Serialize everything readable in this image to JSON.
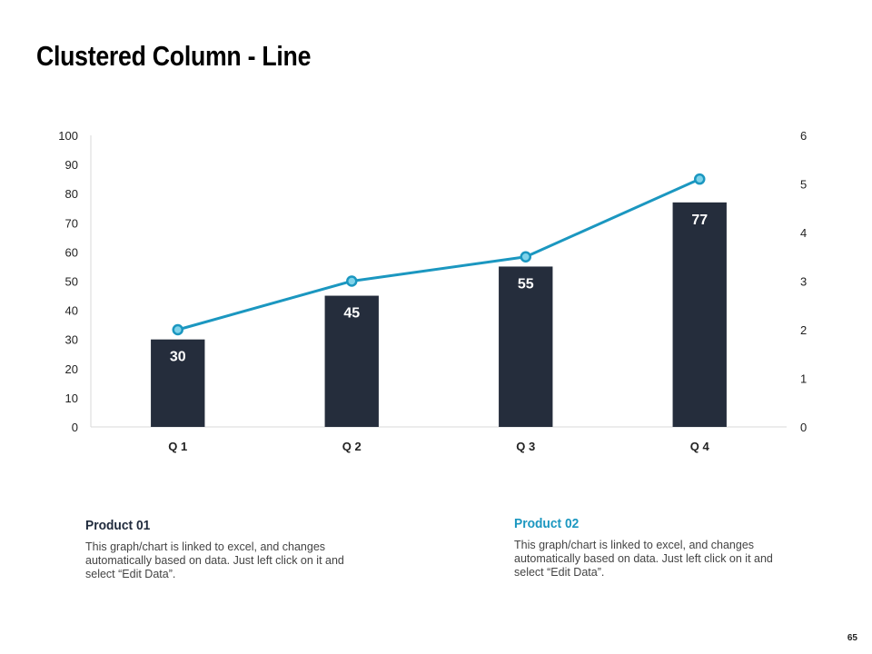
{
  "page": {
    "title": "Clustered Column - Line",
    "page_number": "65"
  },
  "colors": {
    "bar": "#252d3c",
    "line": "#1b97c0",
    "marker_fill": "#7fd3ea",
    "bar_label": "#ffffff",
    "axis_text": "#222222",
    "axis_line": "#d9d9d9"
  },
  "chart_data": {
    "type": "bar",
    "categories": [
      "Q 1",
      "Q 2",
      "Q 3",
      "Q 4"
    ],
    "series": [
      {
        "name": "Product 01",
        "type": "bar",
        "axis": "left",
        "values": [
          30,
          45,
          55,
          77
        ],
        "data_labels": [
          "30",
          "45",
          "55",
          "77"
        ]
      },
      {
        "name": "Product 02",
        "type": "line",
        "axis": "right",
        "values": [
          2.0,
          3.0,
          3.5,
          5.1
        ]
      }
    ],
    "y_left": {
      "ylim": [
        0,
        100
      ],
      "ticks": [
        0,
        10,
        20,
        30,
        40,
        50,
        60,
        70,
        80,
        90,
        100
      ]
    },
    "y_right": {
      "ylim": [
        0,
        6
      ],
      "ticks": [
        0,
        1,
        2,
        3,
        4,
        5,
        6
      ]
    },
    "grid": false,
    "legend_placement": "bottom"
  },
  "legend": [
    {
      "name": "Product 01",
      "description": "This graph/chart is linked to excel,  and changes automatically based on data. Just left click on it and select “Edit Data”."
    },
    {
      "name": "Product 02",
      "description": "This graph/chart is linked to excel,  and changes automatically based on data. Just left click on it and select “Edit Data”."
    }
  ]
}
